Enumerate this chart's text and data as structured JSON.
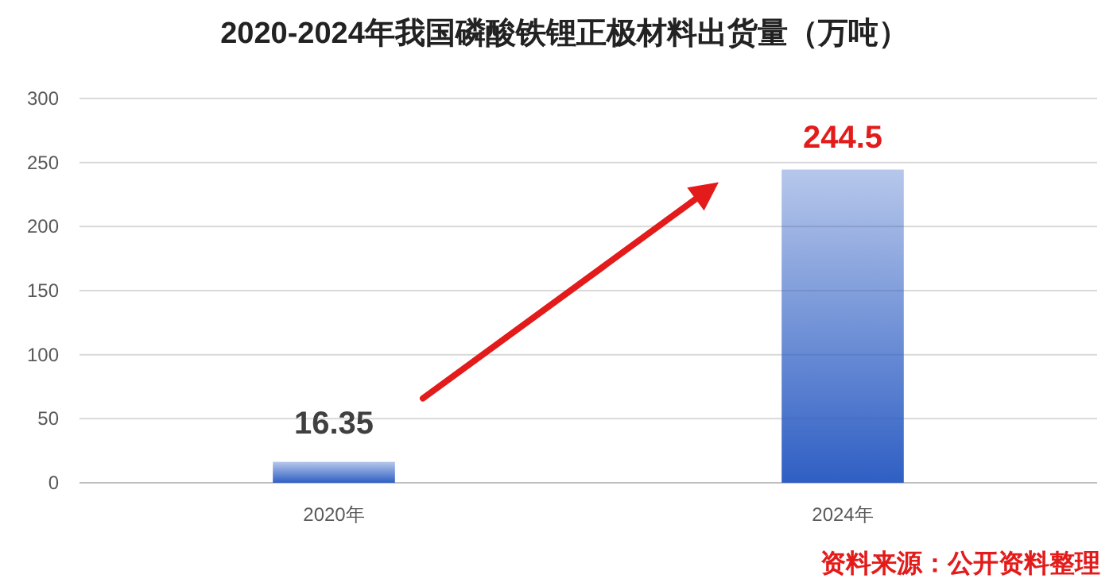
{
  "chart_data": {
    "type": "bar",
    "title": "2020-2024年我国磷酸铁锂正极材料出货量（万吨）",
    "categories": [
      "2020年",
      "2024年"
    ],
    "values": [
      16.35,
      244.5
    ],
    "color": "#2f5fc4",
    "ylim": [
      0,
      300
    ],
    "yticks": [
      0,
      50,
      100,
      150,
      200,
      250,
      300
    ],
    "grid": "y",
    "data_labels": true,
    "annotations": [
      "资料来源：公开资料整理"
    ]
  }
}
